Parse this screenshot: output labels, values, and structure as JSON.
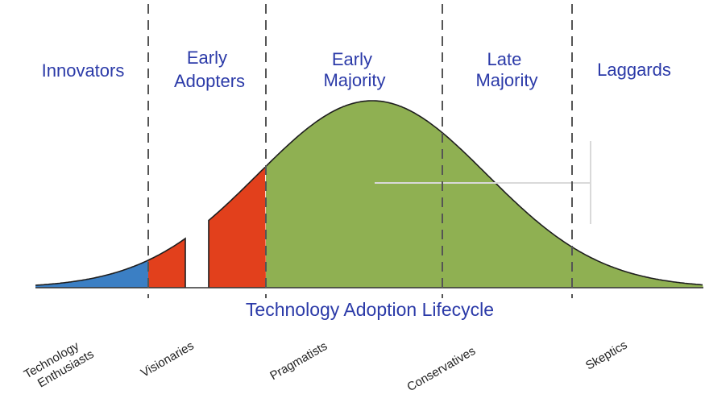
{
  "diagram": {
    "title": "Technology Adoption Lifecycle",
    "segments": [
      {
        "label_lines": [
          "Innovators"
        ],
        "persona_lines": [
          "Technology",
          "Enthusiasts"
        ],
        "color": "#3b7fc4"
      },
      {
        "label_lines": [
          "Early",
          "Adopters"
        ],
        "persona_lines": [
          "Visionaries"
        ],
        "color": "#e2401c"
      },
      {
        "label_lines": [
          "Early",
          "Majority"
        ],
        "persona_lines": [
          "Pragmatists"
        ],
        "color": "#8fb052"
      },
      {
        "label_lines": [
          "Late",
          "Majority"
        ],
        "persona_lines": [
          "Conservatives"
        ],
        "color": "#8fb052"
      },
      {
        "label_lines": [
          "Laggards"
        ],
        "persona_lines": [
          "Skeptics"
        ],
        "color": "#8fb052"
      }
    ],
    "colors": {
      "text": "#2b3aa8",
      "outline": "#1e1e1e",
      "divider": "#555555",
      "baseline": "#333333",
      "background": "#ffffff"
    }
  }
}
